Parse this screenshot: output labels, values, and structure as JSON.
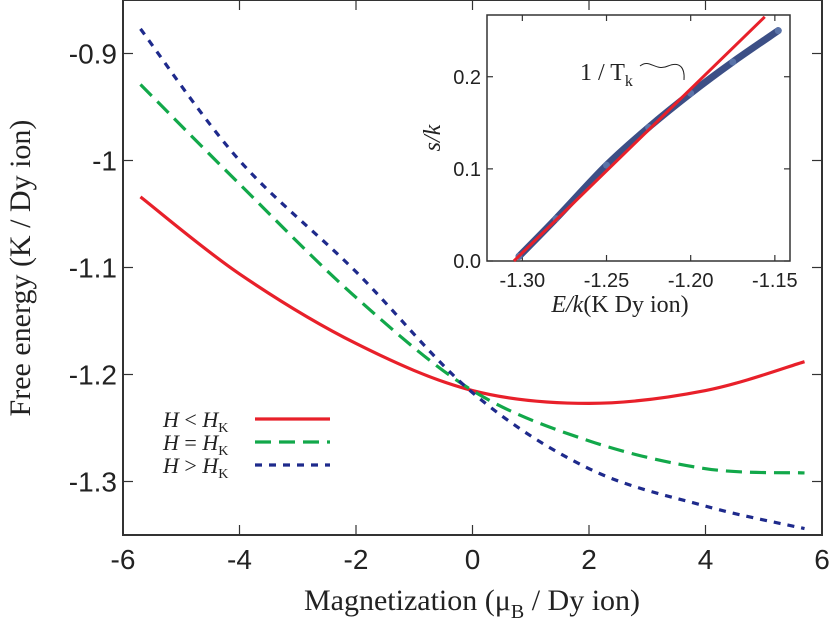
{
  "chart_data": [
    {
      "type": "line",
      "xlabel": "Magnetization (μB / Dy ion)",
      "xlabel_parts": {
        "main": "Magnetization (μ",
        "sub": "B",
        "tail": " / Dy ion)"
      },
      "ylabel": "Free energy (K / Dy ion)",
      "xlim": [
        -6,
        6
      ],
      "ylim": [
        -1.35,
        -0.85
      ],
      "xticks": [
        -6,
        -4,
        -2,
        0,
        2,
        4,
        6
      ],
      "xtick_labels": [
        "-6",
        "-4",
        "-2",
        "0",
        "2",
        "4",
        "6"
      ],
      "yticks": [
        -0.9,
        -1.0,
        -1.1,
        -1.2,
        -1.3
      ],
      "ytick_labels": [
        "-0.9",
        "-1",
        "-1.1",
        "-1.2",
        "-1.3"
      ],
      "grid": false,
      "legend_position": "lower-left",
      "series": [
        {
          "name": "H < HK",
          "legend": {
            "h": "H",
            "op": "<",
            "hk": "H",
            "sub": "K"
          },
          "color": "#e8202a",
          "style": "solid",
          "x": [
            -5.7,
            -4,
            -2,
            0,
            2,
            4,
            5.7
          ],
          "y": [
            -1.034,
            -1.106,
            -1.171,
            -1.215,
            -1.227,
            -1.215,
            -1.188
          ]
        },
        {
          "name": "H = HK",
          "legend": {
            "h": "H",
            "op": "=",
            "hk": "H",
            "sub": "K"
          },
          "color": "#12a84a",
          "style": "dashed",
          "x": [
            -5.7,
            -4,
            -2,
            0,
            2,
            4,
            5.7
          ],
          "y": [
            -0.929,
            -1.022,
            -1.128,
            -1.215,
            -1.262,
            -1.288,
            -1.292
          ]
        },
        {
          "name": "H > HK",
          "legend": {
            "h": "H",
            "op": ">",
            "hk": "H",
            "sub": "K"
          },
          "color": "#1e2a8c",
          "style": "dotted",
          "x": [
            -5.7,
            -4,
            -2,
            0,
            2,
            4,
            5.7
          ],
          "y": [
            -0.877,
            -1.0,
            -1.104,
            -1.217,
            -1.288,
            -1.323,
            -1.344
          ]
        }
      ]
    },
    {
      "type": "scatter",
      "inset": true,
      "xlabel": "E/k(K Dy ion)",
      "xlabel_parts": {
        "italic": "E/k",
        "tail": "(K Dy ion)"
      },
      "ylabel": "s/k",
      "xlim": [
        -1.321,
        -1.141
      ],
      "ylim": [
        0,
        0.267
      ],
      "xticks": [
        -1.3,
        -1.25,
        -1.2,
        -1.15
      ],
      "xtick_labels": [
        "-1.30",
        "-1.25",
        "-1.20",
        "-1.15"
      ],
      "yticks": [
        0,
        0.1,
        0.2
      ],
      "ytick_labels": [
        "0.0",
        "0.1",
        "0.2"
      ],
      "grid": false,
      "annotation": {
        "text": "1 / T",
        "sub": "k"
      },
      "series": [
        {
          "color": "#3c4f86",
          "style": "thick-markers",
          "x": [
            -1.302,
            -1.28,
            -1.25,
            -1.225,
            -1.2,
            -1.175,
            -1.148
          ],
          "y": [
            0.005,
            0.046,
            0.104,
            0.145,
            0.182,
            0.216,
            0.25
          ]
        },
        {
          "color": "#e8202a",
          "style": "solid-fit",
          "x": [
            -1.305,
            -1.156
          ],
          "y": [
            0.0,
            0.265
          ]
        }
      ]
    }
  ]
}
